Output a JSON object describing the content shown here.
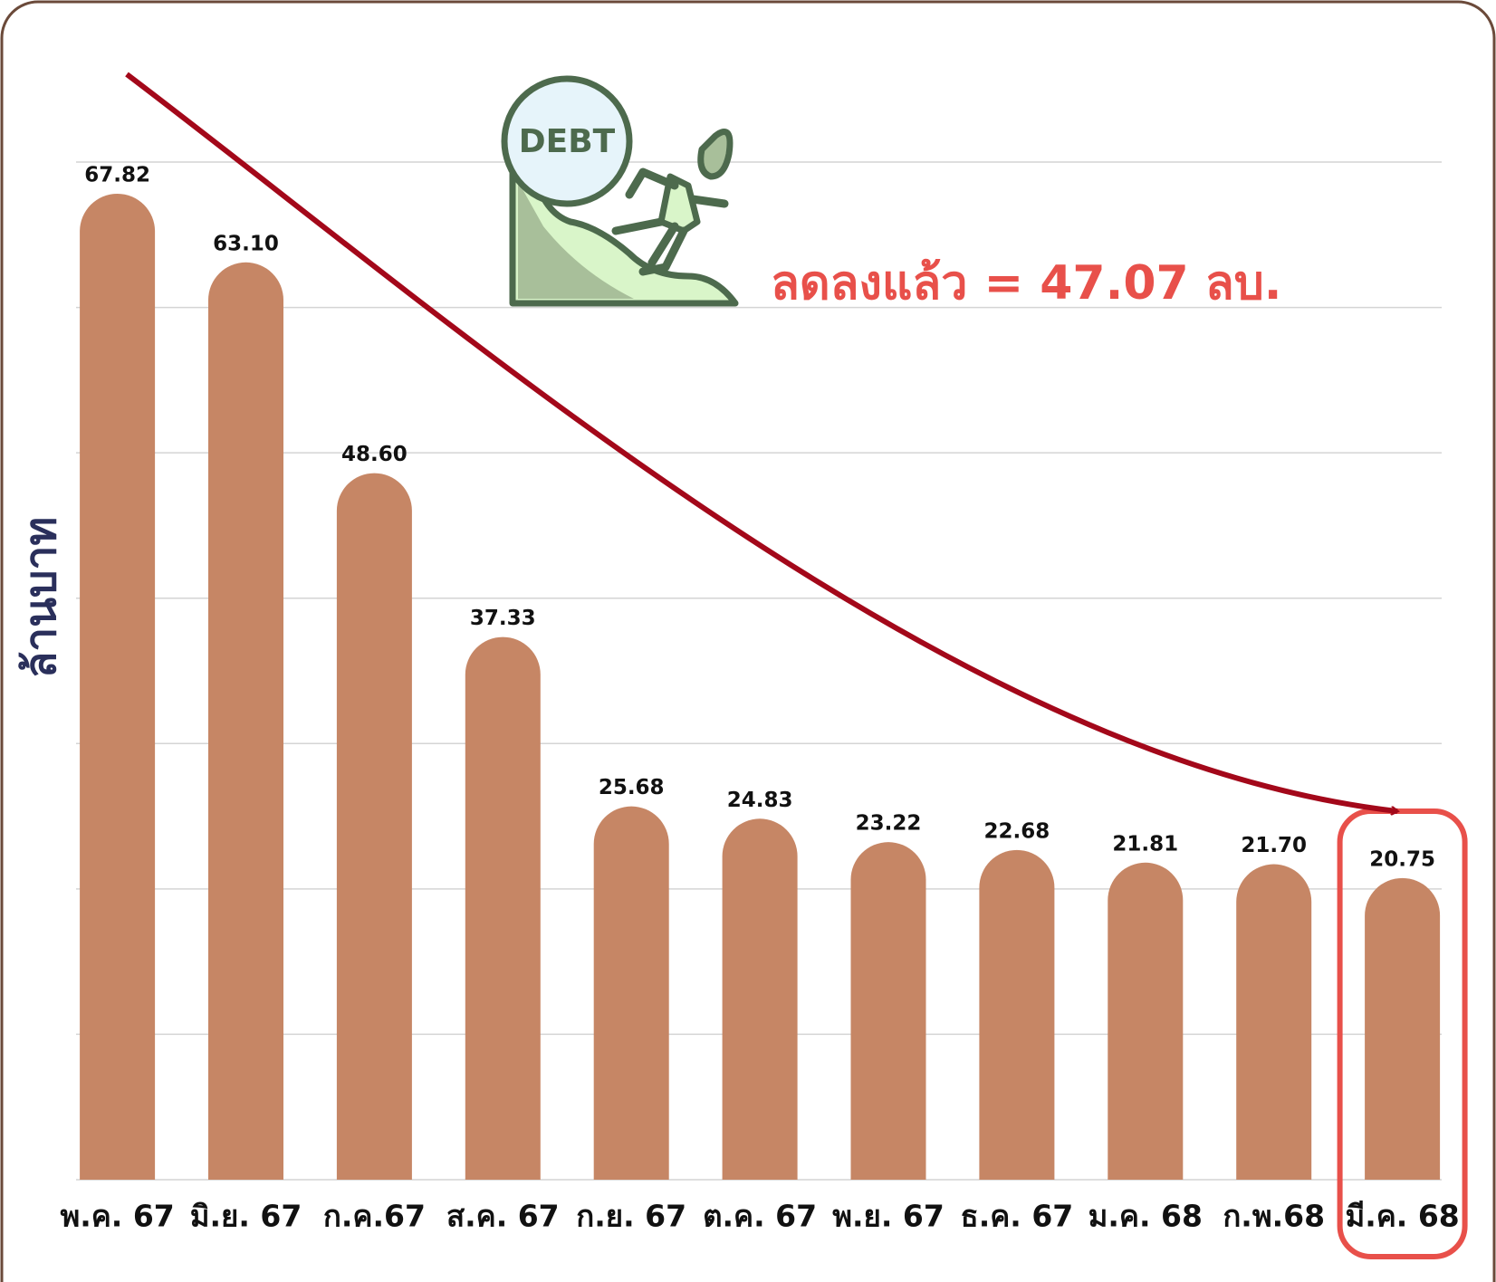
{
  "chart_data": {
    "type": "bar",
    "y_label": "ล้านบาท",
    "annotation": "ลดลงแล้ว = 47.07 ลบ.",
    "icon_text": "DEBT",
    "categories": [
      "พ.ค. 67",
      "มิ.ย. 67",
      "ก.ค.67",
      "ส.ค. 67",
      "ก.ย. 67",
      "ต.ค. 67",
      "พ.ย. 67",
      "ธ.ค. 67",
      "ม.ค. 68",
      "ก.พ.68",
      "มี.ค. 68"
    ],
    "values": [
      67.82,
      63.1,
      48.6,
      37.33,
      25.68,
      24.83,
      23.22,
      22.68,
      21.81,
      21.7,
      20.75
    ],
    "value_labels": [
      "67.82",
      "63.10",
      "48.60",
      "37.33",
      "25.68",
      "24.83",
      "23.22",
      "22.68",
      "21.81",
      "21.70",
      "20.75"
    ],
    "color": "#c68665",
    "highlight": 10,
    "ylim": [
      0,
      70
    ],
    "yticks": [
      0,
      10,
      20,
      30,
      40,
      50,
      60,
      70
    ],
    "grid": true
  }
}
